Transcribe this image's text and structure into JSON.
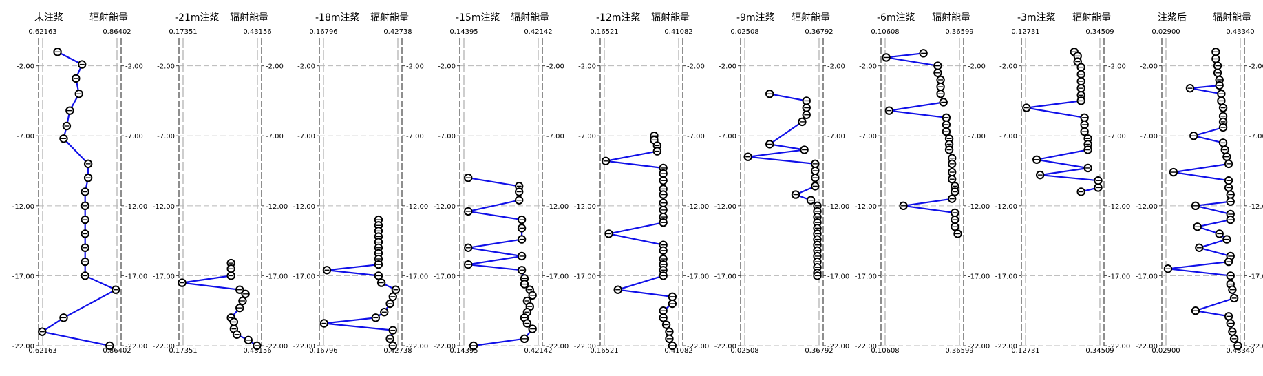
{
  "chart_data": [
    {
      "type": "line",
      "label": "未注浆",
      "right_title": "辐射能量",
      "xrange": [
        0.62163,
        0.86402
      ],
      "xmin_label": "0.62163",
      "xmax_label": "0.86402",
      "ylim": [
        -22,
        0
      ],
      "yticks_left": [
        "-2.00",
        "-7.00",
        "-12.00",
        "-17.00",
        "-22.00"
      ],
      "yticks_right": [
        "-2.00",
        "-7.00",
        "-12.00",
        "-17.00",
        "-22.00"
      ],
      "points": [
        [
          0.67,
          -1.0
        ],
        [
          0.75,
          -1.9
        ],
        [
          0.73,
          -2.9
        ],
        [
          0.74,
          -4.0
        ],
        [
          0.71,
          -5.2
        ],
        [
          0.7,
          -6.3
        ],
        [
          0.69,
          -7.2
        ],
        [
          0.77,
          -9.0
        ],
        [
          0.77,
          -10.0
        ],
        [
          0.76,
          -11.0
        ],
        [
          0.76,
          -12.0
        ],
        [
          0.76,
          -13.0
        ],
        [
          0.76,
          -14.0
        ],
        [
          0.76,
          -15.0
        ],
        [
          0.76,
          -16.0
        ],
        [
          0.76,
          -17.0
        ],
        [
          0.86,
          -18.0
        ],
        [
          0.69,
          -20.0
        ],
        [
          0.62,
          -21.0
        ],
        [
          0.84,
          -22.0
        ]
      ]
    },
    {
      "type": "line",
      "label": "-21m注浆",
      "right_title": "辐射能量",
      "xrange": [
        0.17351,
        0.43156
      ],
      "xmin_label": "0.17351",
      "xmax_label": "0.43156",
      "ylim": [
        -22,
        0
      ],
      "yticks_left": [
        "-2.00",
        "-7.00",
        "-12.00",
        "-17.00",
        "-22.00"
      ],
      "yticks_right": [
        "-2.00",
        "-7.00",
        "-12.00",
        "-17.00",
        "-22.00"
      ],
      "points": [
        [
          0.34,
          -16.1
        ],
        [
          0.34,
          -16.5
        ],
        [
          0.34,
          -17.0
        ],
        [
          0.17,
          -17.5
        ],
        [
          0.37,
          -18.0
        ],
        [
          0.39,
          -18.3
        ],
        [
          0.38,
          -18.8
        ],
        [
          0.37,
          -19.3
        ],
        [
          0.34,
          -20.0
        ],
        [
          0.35,
          -20.3
        ],
        [
          0.35,
          -20.8
        ],
        [
          0.36,
          -21.2
        ],
        [
          0.4,
          -21.6
        ],
        [
          0.43,
          -22.0
        ]
      ]
    },
    {
      "type": "line",
      "label": "-18m注浆",
      "right_title": "辐射能量",
      "xrange": [
        0.16796,
        0.42738
      ],
      "xmin_label": "0.16796",
      "xmax_label": "0.42738",
      "ylim": [
        -22,
        0
      ],
      "yticks_left": [
        "-2.00",
        "-7.00",
        "-12.00",
        "-17.00",
        "-22.00"
      ],
      "yticks_right": [
        "-2.00",
        "-7.00",
        "-12.00",
        "-17.00",
        "-22.00"
      ],
      "points": [
        [
          0.36,
          -13.0
        ],
        [
          0.36,
          -13.4
        ],
        [
          0.36,
          -13.8
        ],
        [
          0.36,
          -14.2
        ],
        [
          0.36,
          -14.6
        ],
        [
          0.36,
          -15.0
        ],
        [
          0.36,
          -15.4
        ],
        [
          0.36,
          -15.8
        ],
        [
          0.36,
          -16.2
        ],
        [
          0.18,
          -16.6
        ],
        [
          0.36,
          -17.0
        ],
        [
          0.37,
          -17.5
        ],
        [
          0.42,
          -18.0
        ],
        [
          0.41,
          -18.5
        ],
        [
          0.4,
          -19.0
        ],
        [
          0.38,
          -19.6
        ],
        [
          0.35,
          -20.0
        ],
        [
          0.17,
          -20.4
        ],
        [
          0.41,
          -20.9
        ],
        [
          0.4,
          -21.5
        ],
        [
          0.41,
          -22.0
        ]
      ]
    },
    {
      "type": "line",
      "label": "-15m注浆",
      "right_title": "辐射能量",
      "xrange": [
        0.14395,
        0.42142
      ],
      "xmin_label": "0.14395",
      "xmax_label": "0.42142",
      "ylim": [
        -22,
        0
      ],
      "yticks_left": [
        "-2.00",
        "-7.00",
        "-12.00",
        "-17.00",
        "-22.00"
      ],
      "yticks_right": [
        "-2.00",
        "-7.00",
        "-12.00",
        "-17.00",
        "-22.00"
      ],
      "points": [
        [
          0.16,
          -10.0
        ],
        [
          0.35,
          -10.6
        ],
        [
          0.35,
          -11.0
        ],
        [
          0.35,
          -11.6
        ],
        [
          0.16,
          -12.4
        ],
        [
          0.36,
          -13.0
        ],
        [
          0.36,
          -13.6
        ],
        [
          0.36,
          -14.4
        ],
        [
          0.16,
          -15.0
        ],
        [
          0.36,
          -15.6
        ],
        [
          0.16,
          -16.2
        ],
        [
          0.36,
          -16.6
        ],
        [
          0.37,
          -17.2
        ],
        [
          0.37,
          -17.6
        ],
        [
          0.39,
          -18.0
        ],
        [
          0.4,
          -18.4
        ],
        [
          0.38,
          -18.8
        ],
        [
          0.39,
          -19.2
        ],
        [
          0.38,
          -19.6
        ],
        [
          0.37,
          -20.0
        ],
        [
          0.38,
          -20.4
        ],
        [
          0.4,
          -20.8
        ],
        [
          0.37,
          -21.5
        ],
        [
          0.18,
          -22.0
        ]
      ]
    },
    {
      "type": "line",
      "label": "-12m注浆",
      "right_title": "辐射能量",
      "xrange": [
        0.16521,
        0.41082
      ],
      "xmin_label": "0.16521",
      "xmax_label": "0.41082",
      "ylim": [
        -22,
        0
      ],
      "yticks_left": [
        "-2.00",
        "-7.00",
        "-12.00",
        "-17.00",
        "-22.00"
      ],
      "yticks_right": [
        "-2.00",
        "-7.00",
        "-12.00",
        "-17.00",
        "-22.00"
      ],
      "points": [
        [
          0.33,
          -7.0
        ],
        [
          0.33,
          -7.3
        ],
        [
          0.34,
          -7.7
        ],
        [
          0.34,
          -8.1
        ],
        [
          0.17,
          -8.8
        ],
        [
          0.36,
          -9.3
        ],
        [
          0.36,
          -9.7
        ],
        [
          0.36,
          -10.2
        ],
        [
          0.36,
          -10.8
        ],
        [
          0.36,
          -11.2
        ],
        [
          0.36,
          -11.8
        ],
        [
          0.36,
          -12.3
        ],
        [
          0.36,
          -12.8
        ],
        [
          0.36,
          -13.2
        ],
        [
          0.18,
          -14.0
        ],
        [
          0.36,
          -14.8
        ],
        [
          0.36,
          -15.2
        ],
        [
          0.36,
          -15.8
        ],
        [
          0.36,
          -16.2
        ],
        [
          0.36,
          -16.6
        ],
        [
          0.36,
          -17.0
        ],
        [
          0.21,
          -18.0
        ],
        [
          0.39,
          -18.5
        ],
        [
          0.39,
          -19.0
        ],
        [
          0.36,
          -19.5
        ],
        [
          0.36,
          -20.0
        ],
        [
          0.37,
          -20.5
        ],
        [
          0.38,
          -21.0
        ],
        [
          0.38,
          -21.5
        ],
        [
          0.39,
          -22.0
        ]
      ]
    },
    {
      "type": "line",
      "label": "-9m注浆",
      "right_title": "辐射能量",
      "xrange": [
        0.02508,
        0.36792
      ],
      "xmin_label": "0.02508",
      "xmax_label": "0.36792",
      "ylim": [
        -22,
        0
      ],
      "yticks_left": [
        "-2.00",
        "-7.00",
        "-12.00",
        "-17.00",
        "-22.00"
      ],
      "yticks_right": [
        "-2.00",
        "-7.00",
        "-12.00",
        "-17.00",
        "-22.00"
      ],
      "points": [
        [
          0.14,
          -4.0
        ],
        [
          0.31,
          -4.5
        ],
        [
          0.31,
          -5.0
        ],
        [
          0.31,
          -5.5
        ],
        [
          0.29,
          -6.0
        ],
        [
          0.14,
          -7.6
        ],
        [
          0.3,
          -8.0
        ],
        [
          0.04,
          -8.5
        ],
        [
          0.35,
          -9.0
        ],
        [
          0.35,
          -9.5
        ],
        [
          0.35,
          -10.0
        ],
        [
          0.35,
          -10.6
        ],
        [
          0.26,
          -11.2
        ],
        [
          0.33,
          -11.6
        ],
        [
          0.36,
          -12.0
        ],
        [
          0.36,
          -12.4
        ],
        [
          0.36,
          -12.8
        ],
        [
          0.36,
          -13.2
        ],
        [
          0.36,
          -13.6
        ],
        [
          0.36,
          -14.0
        ],
        [
          0.36,
          -14.4
        ],
        [
          0.36,
          -14.8
        ],
        [
          0.36,
          -15.2
        ],
        [
          0.36,
          -15.6
        ],
        [
          0.36,
          -16.0
        ],
        [
          0.36,
          -16.4
        ],
        [
          0.36,
          -16.8
        ],
        [
          0.36,
          -17.0
        ]
      ]
    },
    {
      "type": "line",
      "label": "-6m注浆",
      "right_title": "辐射能量",
      "xrange": [
        0.10608,
        0.36599
      ],
      "xmin_label": "0.10608",
      "xmax_label": "0.36599",
      "ylim": [
        -22,
        0
      ],
      "yticks_left": [
        "-2.00",
        "-7.00",
        "-12.00",
        "-17.00",
        "-22.00"
      ],
      "yticks_right": [
        "-2.00",
        "-7.00",
        "-12.00",
        "-17.00",
        "-22.00"
      ],
      "points": [
        [
          0.24,
          -1.1
        ],
        [
          0.11,
          -1.4
        ],
        [
          0.29,
          -2.0
        ],
        [
          0.29,
          -2.5
        ],
        [
          0.3,
          -3.0
        ],
        [
          0.3,
          -3.5
        ],
        [
          0.3,
          -4.0
        ],
        [
          0.31,
          -4.6
        ],
        [
          0.12,
          -5.2
        ],
        [
          0.32,
          -5.7
        ],
        [
          0.32,
          -6.2
        ],
        [
          0.32,
          -6.7
        ],
        [
          0.33,
          -7.2
        ],
        [
          0.33,
          -7.6
        ],
        [
          0.33,
          -8.0
        ],
        [
          0.34,
          -8.6
        ],
        [
          0.34,
          -9.0
        ],
        [
          0.34,
          -9.6
        ],
        [
          0.34,
          -10.1
        ],
        [
          0.35,
          -10.6
        ],
        [
          0.35,
          -11.0
        ],
        [
          0.34,
          -11.5
        ],
        [
          0.17,
          -12.0
        ],
        [
          0.35,
          -12.5
        ],
        [
          0.35,
          -13.0
        ],
        [
          0.35,
          -13.5
        ],
        [
          0.36,
          -14.0
        ]
      ]
    },
    {
      "type": "line",
      "label": "-3m注浆",
      "right_title": "辐射能量",
      "xrange": [
        0.12731,
        0.34509
      ],
      "xmin_label": "0.12731",
      "xmax_label": "0.34509",
      "ylim": [
        -22,
        0
      ],
      "yticks_left": [
        "-2.00",
        "-7.00",
        "-12.00",
        "-17.00",
        "-22.00"
      ],
      "yticks_right": [
        "-2.00",
        "-7.00",
        "-12.00",
        "-17.00",
        "-22.00"
      ],
      "points": [
        [
          0.27,
          -1.0
        ],
        [
          0.28,
          -1.3
        ],
        [
          0.28,
          -1.7
        ],
        [
          0.29,
          -2.1
        ],
        [
          0.29,
          -2.6
        ],
        [
          0.29,
          -3.1
        ],
        [
          0.29,
          -3.6
        ],
        [
          0.29,
          -4.1
        ],
        [
          0.29,
          -4.5
        ],
        [
          0.13,
          -5.0
        ],
        [
          0.3,
          -5.7
        ],
        [
          0.3,
          -6.2
        ],
        [
          0.3,
          -6.7
        ],
        [
          0.31,
          -7.2
        ],
        [
          0.31,
          -7.6
        ],
        [
          0.31,
          -8.0
        ],
        [
          0.16,
          -8.7
        ],
        [
          0.31,
          -9.3
        ],
        [
          0.17,
          -9.8
        ],
        [
          0.34,
          -10.2
        ],
        [
          0.34,
          -10.7
        ],
        [
          0.29,
          -11.0
        ]
      ]
    },
    {
      "type": "line",
      "label": "注浆后",
      "right_title": "辐射能量",
      "xrange": [
        0.029,
        0.4334
      ],
      "xmin_label": "0.02900",
      "xmax_label": "0.43340",
      "ylim": [
        -22,
        0
      ],
      "yticks_left": [
        "-2.00",
        "-7.00",
        "-12.00",
        "-17.00",
        "-22.00"
      ],
      "yticks_right": [
        "-2.00",
        "-7.00",
        "-12.00",
        "-17.00",
        "-22.00"
      ],
      "points": [
        [
          0.3,
          -1.0
        ],
        [
          0.3,
          -1.5
        ],
        [
          0.31,
          -2.0
        ],
        [
          0.31,
          -2.5
        ],
        [
          0.32,
          -3.0
        ],
        [
          0.32,
          -3.4
        ],
        [
          0.16,
          -3.6
        ],
        [
          0.33,
          -4.0
        ],
        [
          0.33,
          -4.5
        ],
        [
          0.34,
          -5.0
        ],
        [
          0.34,
          -5.6
        ],
        [
          0.34,
          -6.0
        ],
        [
          0.34,
          -6.4
        ],
        [
          0.18,
          -7.0
        ],
        [
          0.34,
          -7.5
        ],
        [
          0.35,
          -8.0
        ],
        [
          0.36,
          -8.5
        ],
        [
          0.37,
          -9.0
        ],
        [
          0.07,
          -9.6
        ],
        [
          0.37,
          -10.2
        ],
        [
          0.37,
          -10.7
        ],
        [
          0.38,
          -11.2
        ],
        [
          0.38,
          -11.7
        ],
        [
          0.19,
          -12.0
        ],
        [
          0.38,
          -12.6
        ],
        [
          0.38,
          -13.0
        ],
        [
          0.2,
          -13.5
        ],
        [
          0.32,
          -14.0
        ],
        [
          0.36,
          -14.4
        ],
        [
          0.21,
          -15.0
        ],
        [
          0.38,
          -15.6
        ],
        [
          0.37,
          -16.0
        ],
        [
          0.04,
          -16.5
        ],
        [
          0.38,
          -17.0
        ],
        [
          0.38,
          -17.6
        ],
        [
          0.39,
          -18.0
        ],
        [
          0.4,
          -18.6
        ],
        [
          0.19,
          -19.5
        ],
        [
          0.37,
          -19.9
        ],
        [
          0.38,
          -20.4
        ],
        [
          0.39,
          -21.0
        ],
        [
          0.4,
          -21.5
        ],
        [
          0.42,
          -22.0
        ]
      ]
    }
  ],
  "colors": {
    "line": "#1010e8",
    "marker_fill": "#ffffff",
    "marker_stroke": "#000000",
    "axis": "#555555",
    "grid": "#b8b8b8"
  }
}
